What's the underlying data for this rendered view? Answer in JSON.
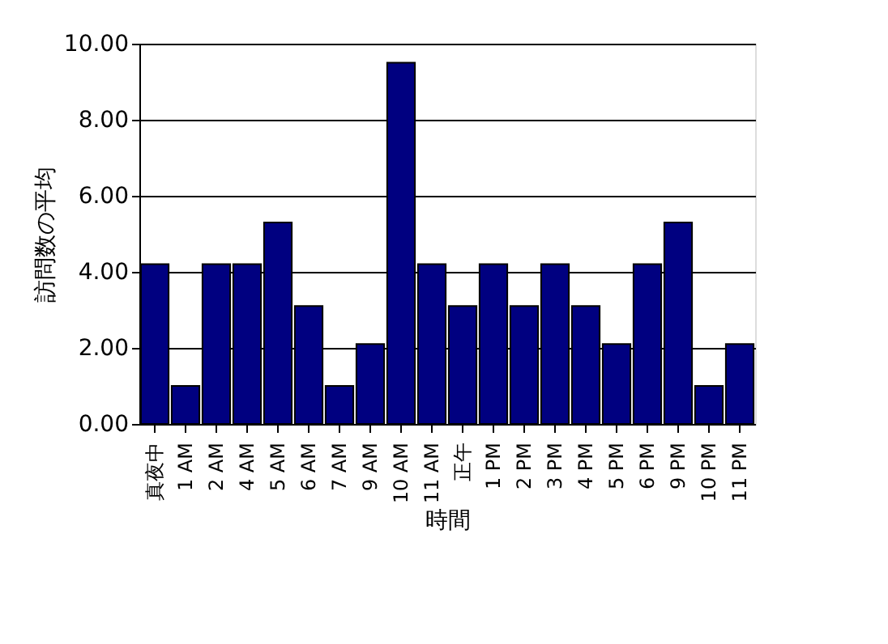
{
  "chart_data": {
    "type": "bar",
    "xlabel": "時間",
    "ylabel": "訪問数の平均",
    "categories": [
      "真夜中",
      "1 AM",
      "2 AM",
      "4 AM",
      "5 AM",
      "6 AM",
      "7 AM",
      "9 AM",
      "10 AM",
      "11 AM",
      "正午",
      "1 PM",
      "2 PM",
      "3 PM",
      "4 PM",
      "5 PM",
      "6 PM",
      "9 PM",
      "10 PM",
      "11 PM"
    ],
    "values": [
      4.2,
      1.0,
      4.2,
      4.2,
      5.3,
      3.1,
      1.0,
      2.1,
      9.5,
      4.2,
      3.1,
      4.2,
      3.1,
      4.2,
      3.1,
      2.1,
      4.2,
      5.3,
      1.0,
      2.1
    ],
    "color": "#000080",
    "ylim": [
      0,
      10
    ],
    "yticks": [
      {
        "value": 0,
        "label": "0.00"
      },
      {
        "value": 2,
        "label": "2.00"
      },
      {
        "value": 4,
        "label": "4.00"
      },
      {
        "value": 6,
        "label": "6.00"
      },
      {
        "value": 8,
        "label": "8.00"
      },
      {
        "value": 10,
        "label": "10.00"
      }
    ],
    "grid": "y"
  }
}
